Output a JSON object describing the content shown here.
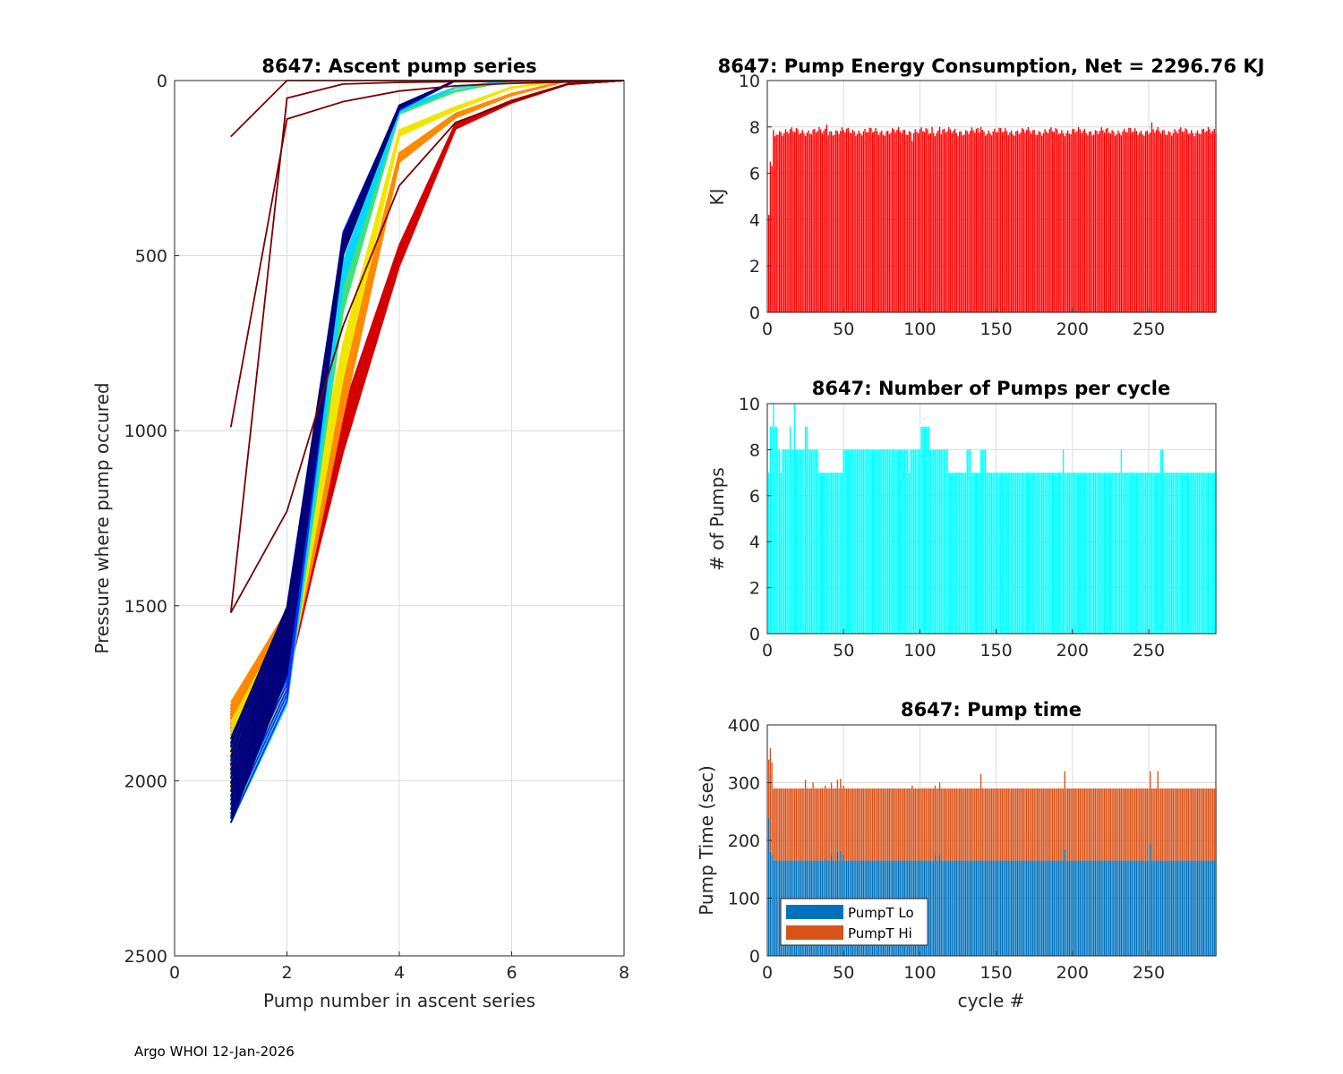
{
  "figure": {
    "footer": "Argo WHOI 12-Jan-2026"
  },
  "chart_data": [
    {
      "type": "line",
      "title": "8647: Ascent pump series",
      "xlabel": "Pump number in ascent series",
      "ylabel": "Pressure where pump occured",
      "xlim": [
        0,
        8
      ],
      "ylim": [
        0,
        2500
      ],
      "y_reversed": true,
      "xticks": [
        0,
        2,
        4,
        6,
        8
      ],
      "yticks": [
        0,
        500,
        1000,
        1500,
        2000,
        2500
      ],
      "grid": true,
      "colormap": "jet (early cycles dark red, late cycles dark blue)",
      "bundles": [
        {
          "name": "early-red",
          "color": "#d40000",
          "count": 26,
          "x": [
            1,
            2,
            2.5,
            3,
            4,
            5,
            6,
            7,
            8
          ],
          "y": [
            1900,
            1620,
            1300,
            1000,
            500,
            130,
            60,
            10,
            0
          ]
        },
        {
          "name": "orange",
          "color": "#ff8a00",
          "count": 28,
          "x": [
            1,
            2,
            2.5,
            3,
            4,
            5,
            6,
            7
          ],
          "y": [
            1890,
            1610,
            1270,
            900,
            220,
            100,
            40,
            0
          ]
        },
        {
          "name": "yellow",
          "color": "#f2e600",
          "count": 22,
          "x": [
            1,
            2,
            3,
            4,
            5,
            6,
            7
          ],
          "y": [
            1950,
            1640,
            800,
            150,
            80,
            20,
            0
          ]
        },
        {
          "name": "green",
          "color": "#44e077",
          "count": 8,
          "x": [
            1,
            2,
            3,
            4,
            5,
            6
          ],
          "y": [
            1990,
            1670,
            620,
            90,
            30,
            0
          ]
        },
        {
          "name": "cyan",
          "color": "#00d8ff",
          "count": 8,
          "x": [
            1,
            2,
            3,
            4,
            5,
            6
          ],
          "y": [
            2000,
            1680,
            550,
            85,
            20,
            0
          ]
        },
        {
          "name": "blue",
          "color": "#1030ff",
          "count": 14,
          "x": [
            1,
            2,
            3,
            4,
            5
          ],
          "y": [
            2000,
            1670,
            460,
            80,
            0
          ]
        },
        {
          "name": "navy",
          "color": "#00007a",
          "count": 20,
          "x": [
            1,
            2,
            3,
            4,
            5
          ],
          "y": [
            2000,
            1600,
            470,
            75,
            0
          ]
        },
        {
          "name": "dark-red-A",
          "color": "#7a0000",
          "count": 1,
          "x": [
            1,
            2,
            3,
            4,
            5,
            6,
            7,
            8
          ],
          "y": [
            1520,
            1230,
            700,
            300,
            120,
            60,
            10,
            0
          ]
        },
        {
          "name": "dark-red-B",
          "color": "#7a0000",
          "count": 1,
          "x": [
            1,
            2,
            3,
            4,
            5,
            6,
            7,
            8
          ],
          "y": [
            990,
            110,
            60,
            30,
            15,
            8,
            4,
            0
          ]
        },
        {
          "name": "dark-red-C",
          "color": "#7a0000",
          "count": 1,
          "x": [
            1,
            2,
            3,
            4,
            5,
            6,
            7,
            8
          ],
          "y": [
            1520,
            50,
            10,
            5,
            3,
            2,
            1,
            0
          ]
        },
        {
          "name": "dark-red-D",
          "color": "#7a0000",
          "count": 1,
          "x": [
            1,
            2,
            3,
            4,
            5,
            6,
            7,
            8
          ],
          "y": [
            160,
            0,
            0,
            0,
            0,
            0,
            0,
            0
          ]
        }
      ]
    },
    {
      "type": "bar",
      "title": "8647: Pump Energy Consumption,  Net = 2296.76 KJ",
      "xlabel": "",
      "ylabel": "KJ",
      "xlim": [
        0,
        294
      ],
      "ylim": [
        0,
        10
      ],
      "xticks": [
        0,
        50,
        100,
        150,
        200,
        250
      ],
      "yticks": [
        0,
        2,
        4,
        6,
        8,
        10
      ],
      "color": "#ff0000",
      "n_cycles": 294,
      "baseline": 7.8,
      "values_note": "KJ per cycle, cycles 1..294; most near 7.7-7.9",
      "overrides": {
        "1": 4.2,
        "2": 6.5,
        "3": 6.3,
        "5": 7.6,
        "39": 8.1,
        "95": 7.4,
        "108": 8.0,
        "113": 8.0,
        "125": 7.6,
        "140": 8.0,
        "200": 7.9,
        "252": 8.2
      }
    },
    {
      "type": "bar",
      "title": "8647: Number of Pumps per cycle",
      "xlabel": "",
      "ylabel": "# of Pumps",
      "xlim": [
        0,
        294
      ],
      "ylim": [
        0,
        10
      ],
      "xticks": [
        0,
        50,
        100,
        150,
        200,
        250
      ],
      "yticks": [
        0,
        2,
        4,
        6,
        8,
        10
      ],
      "color": "#00ffff",
      "n_cycles": 294,
      "segments": [
        {
          "from": 1,
          "to": 1,
          "value": 7
        },
        {
          "from": 2,
          "to": 3,
          "value": 9
        },
        {
          "from": 4,
          "to": 4,
          "value": 10
        },
        {
          "from": 5,
          "to": 6,
          "value": 9
        },
        {
          "from": 7,
          "to": 8,
          "value": 8
        },
        {
          "from": 9,
          "to": 9,
          "value": 7
        },
        {
          "from": 10,
          "to": 14,
          "value": 8
        },
        {
          "from": 15,
          "to": 15,
          "value": 9
        },
        {
          "from": 16,
          "to": 17,
          "value": 8
        },
        {
          "from": 18,
          "to": 18,
          "value": 10
        },
        {
          "from": 19,
          "to": 24,
          "value": 8
        },
        {
          "from": 25,
          "to": 26,
          "value": 9
        },
        {
          "from": 27,
          "to": 33,
          "value": 8
        },
        {
          "from": 34,
          "to": 49,
          "value": 7
        },
        {
          "from": 50,
          "to": 92,
          "value": 8
        },
        {
          "from": 93,
          "to": 93,
          "value": 7
        },
        {
          "from": 94,
          "to": 100,
          "value": 8
        },
        {
          "from": 101,
          "to": 106,
          "value": 9
        },
        {
          "from": 107,
          "to": 118,
          "value": 8
        },
        {
          "from": 119,
          "to": 130,
          "value": 7
        },
        {
          "from": 131,
          "to": 133,
          "value": 8
        },
        {
          "from": 134,
          "to": 139,
          "value": 7
        },
        {
          "from": 140,
          "to": 143,
          "value": 8
        },
        {
          "from": 144,
          "to": 193,
          "value": 7
        },
        {
          "from": 194,
          "to": 194,
          "value": 8
        },
        {
          "from": 195,
          "to": 231,
          "value": 7
        },
        {
          "from": 232,
          "to": 232,
          "value": 8
        },
        {
          "from": 233,
          "to": 257,
          "value": 7
        },
        {
          "from": 258,
          "to": 259,
          "value": 8
        },
        {
          "from": 260,
          "to": 294,
          "value": 7
        }
      ]
    },
    {
      "type": "bar",
      "stacked": true,
      "title": "8647: Pump time",
      "xlabel": "cycle #",
      "ylabel": "Pump Time (sec)",
      "xlim": [
        0,
        294
      ],
      "ylim": [
        0,
        400
      ],
      "xticks": [
        0,
        50,
        100,
        150,
        200,
        250
      ],
      "yticks": [
        0,
        100,
        200,
        300,
        400
      ],
      "legend_position": "bottom-left",
      "n_cycles": 294,
      "series": [
        {
          "name": "PumpT Lo",
          "color": "#0072bd",
          "baseline": 165,
          "overrides": {
            "1": 240,
            "2": 180,
            "3": 175,
            "38": 170,
            "42": 175,
            "46": 180,
            "48": 182,
            "50": 175,
            "110": 175,
            "113": 175,
            "195": 185,
            "251": 195
          }
        },
        {
          "name": "PumpT Hi",
          "color": "#d95319",
          "baseline": 125,
          "overrides": {
            "1": 100,
            "2": 180,
            "3": 160,
            "5": 125,
            "25": 140,
            "30": 135,
            "40": 125,
            "50": 120,
            "95": 130,
            "110": 120,
            "130": 125,
            "140": 150,
            "195": 135,
            "251": 125,
            "256": 155
          }
        }
      ]
    }
  ]
}
